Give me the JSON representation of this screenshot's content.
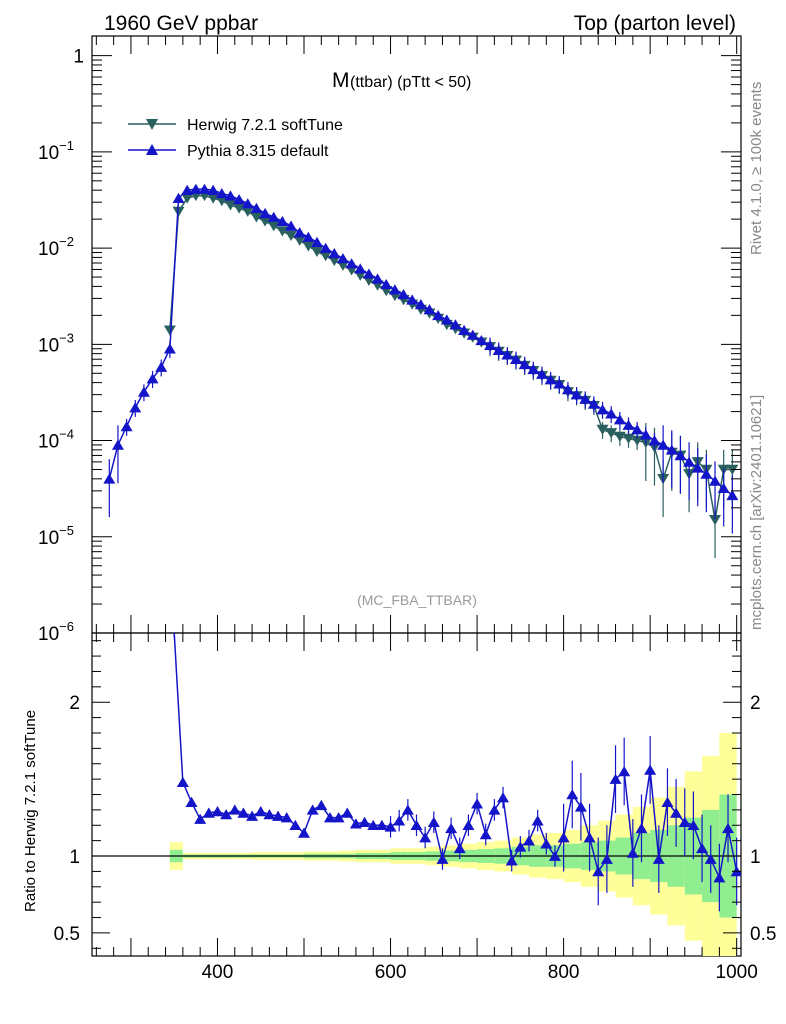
{
  "header": {
    "left": "1960 GeV ppbar",
    "right": "Top (parton level)"
  },
  "plot_title": {
    "main": "M",
    "sub": "(ttbar) (pTtt < 50)"
  },
  "side_labels": {
    "rivet": "Rivet 4.1.0, ≥ 100k events",
    "mcplots": "mcplots.cern.ch [arXiv:2401.10621]"
  },
  "watermark": "(MC_FBA_TTBAR)",
  "colors": {
    "herwig": "#2a5f5f",
    "pythia": "#1414c8",
    "band_inner": "#90ee90",
    "band_outer": "#ffff99"
  },
  "chart_data": [
    {
      "type": "line",
      "panel": "main",
      "yscale": "log",
      "xlim": [
        255,
        1005
      ],
      "ylim": [
        1e-06,
        1.6
      ],
      "x_ticks": [
        400,
        600,
        800,
        1000
      ],
      "y_tick_labels": [
        {
          "value": 1,
          "base": "1",
          "exp": ""
        },
        {
          "value": 0.1,
          "base": "10",
          "exp": "−1"
        },
        {
          "value": 0.01,
          "base": "10",
          "exp": "−2"
        },
        {
          "value": 0.001,
          "base": "10",
          "exp": "−3"
        },
        {
          "value": 0.0001,
          "base": "10",
          "exp": "−4"
        },
        {
          "value": 1e-05,
          "base": "10",
          "exp": "−5"
        },
        {
          "value": 1e-06,
          "base": "10",
          "exp": "−6"
        }
      ],
      "legend_position": "top-left",
      "series": [
        {
          "name": "Herwig 7.2.1 softTune",
          "marker": "triangle-down",
          "x": [
            345,
            355,
            365,
            375,
            385,
            395,
            405,
            415,
            425,
            435,
            445,
            455,
            465,
            475,
            485,
            495,
            505,
            515,
            525,
            535,
            545,
            555,
            565,
            575,
            585,
            595,
            605,
            615,
            625,
            635,
            645,
            655,
            665,
            675,
            685,
            695,
            705,
            715,
            725,
            735,
            745,
            755,
            765,
            775,
            785,
            795,
            805,
            815,
            825,
            835,
            845,
            855,
            865,
            875,
            885,
            895,
            905,
            915,
            925,
            935,
            945,
            955,
            965,
            975,
            985,
            995
          ],
          "values": [
            0.0014,
            0.024,
            0.033,
            0.035,
            0.035,
            0.033,
            0.031,
            0.028,
            0.026,
            0.024,
            0.021,
            0.019,
            0.017,
            0.015,
            0.0135,
            0.012,
            0.0105,
            0.0092,
            0.0083,
            0.0074,
            0.0066,
            0.0059,
            0.0052,
            0.0046,
            0.0041,
            0.0036,
            0.0032,
            0.0029,
            0.0026,
            0.0023,
            0.0021,
            0.00185,
            0.0016,
            0.00145,
            0.0013,
            0.00118,
            0.00105,
            0.00094,
            0.00084,
            0.00076,
            0.00068,
            0.0006,
            0.00053,
            0.00047,
            0.00042,
            0.00038,
            0.00032,
            0.00029,
            0.00026,
            0.00023,
            0.00013,
            0.00012,
            0.00011,
            0.000105,
            0.0001,
            9.5e-05,
            8.5e-05,
            4e-05,
            7.5e-05,
            7e-05,
            4.5e-05,
            6e-05,
            5e-05,
            1.5e-05,
            5e-05,
            5e-05
          ]
        },
        {
          "name": "Pythia 8.315 default",
          "marker": "triangle-up",
          "x": [
            275,
            285,
            295,
            305,
            315,
            325,
            335,
            345,
            355,
            365,
            375,
            385,
            395,
            405,
            415,
            425,
            435,
            445,
            455,
            465,
            475,
            485,
            495,
            505,
            515,
            525,
            535,
            545,
            555,
            565,
            575,
            585,
            595,
            605,
            615,
            625,
            635,
            645,
            655,
            665,
            675,
            685,
            695,
            705,
            715,
            725,
            735,
            745,
            755,
            765,
            775,
            785,
            795,
            805,
            815,
            825,
            835,
            845,
            855,
            865,
            875,
            885,
            895,
            905,
            915,
            925,
            935,
            945,
            955,
            965,
            975,
            985,
            995
          ],
          "values": [
            4e-05,
            9e-05,
            0.00014,
            0.00022,
            0.00032,
            0.00044,
            0.00058,
            0.0009,
            0.033,
            0.04,
            0.041,
            0.041,
            0.04,
            0.037,
            0.035,
            0.032,
            0.029,
            0.026,
            0.023,
            0.021,
            0.019,
            0.017,
            0.0145,
            0.013,
            0.0115,
            0.01,
            0.0088,
            0.0078,
            0.0069,
            0.0061,
            0.0054,
            0.0048,
            0.0042,
            0.0037,
            0.0033,
            0.0029,
            0.0026,
            0.0023,
            0.002,
            0.0018,
            0.0016,
            0.0014,
            0.00125,
            0.0011,
            0.00098,
            0.00087,
            0.00078,
            0.0007,
            0.00062,
            0.00055,
            0.00049,
            0.00043,
            0.00039,
            0.00034,
            0.0003,
            0.00027,
            0.00024,
            0.00021,
            0.00019,
            0.000165,
            0.000145,
            0.00013,
            0.000115,
            0.0001,
            9e-05,
            8e-05,
            7e-05,
            6e-05,
            5.2e-05,
            4.5e-05,
            3.8e-05,
            3.2e-05,
            2.7e-05
          ]
        }
      ]
    },
    {
      "type": "line",
      "panel": "ratio",
      "ylabel": "Ratio to Herwig 7.2.1 softTune",
      "xlim": [
        255,
        1005
      ],
      "ylim": [
        0.35,
        2.45
      ],
      "x_ticks": [
        400,
        600,
        800,
        1000
      ],
      "y_ticks": [
        0.5,
        1,
        2
      ],
      "series": [
        {
          "name": "Pythia 8.315 default",
          "x": [
            350,
            360,
            370,
            380,
            390,
            400,
            410,
            420,
            430,
            440,
            450,
            460,
            470,
            480,
            490,
            500,
            510,
            520,
            530,
            540,
            550,
            560,
            570,
            580,
            590,
            600,
            610,
            620,
            630,
            640,
            650,
            660,
            670,
            680,
            690,
            700,
            710,
            720,
            730,
            740,
            750,
            760,
            770,
            780,
            790,
            800,
            810,
            820,
            830,
            840,
            850,
            860,
            870,
            880,
            890,
            900,
            910,
            920,
            930,
            940,
            950,
            960,
            970,
            980,
            990,
            1000
          ],
          "values": [
            2.45,
            1.48,
            1.35,
            1.24,
            1.28,
            1.29,
            1.27,
            1.3,
            1.28,
            1.26,
            1.29,
            1.27,
            1.26,
            1.25,
            1.2,
            1.15,
            1.3,
            1.33,
            1.25,
            1.25,
            1.28,
            1.21,
            1.22,
            1.2,
            1.2,
            1.19,
            1.23,
            1.3,
            1.2,
            1.12,
            1.22,
            0.98,
            1.18,
            1.05,
            1.2,
            1.34,
            1.14,
            1.3,
            1.38,
            0.97,
            1.06,
            1.1,
            1.23,
            1.08,
            1.0,
            1.12,
            1.4,
            1.32,
            1.12,
            0.9,
            0.98,
            1.5,
            1.55,
            1.02,
            1.18,
            1.56,
            0.98,
            1.35,
            1.28,
            1.22,
            1.2,
            1.05,
            0.98,
            0.86,
            1.18,
            0.9
          ]
        }
      ],
      "band_x": [
        345,
        360,
        380,
        400,
        420,
        440,
        460,
        480,
        500,
        520,
        540,
        560,
        580,
        600,
        620,
        640,
        660,
        680,
        700,
        720,
        740,
        760,
        780,
        800,
        820,
        840,
        860,
        880,
        900,
        920,
        940,
        960,
        980,
        1000
      ],
      "band_inner_half": [
        0.04,
        0.01,
        0.01,
        0.01,
        0.01,
        0.01,
        0.01,
        0.01,
        0.015,
        0.015,
        0.015,
        0.02,
        0.02,
        0.025,
        0.025,
        0.03,
        0.035,
        0.04,
        0.045,
        0.05,
        0.06,
        0.07,
        0.07,
        0.08,
        0.09,
        0.1,
        0.12,
        0.15,
        0.17,
        0.2,
        0.25,
        0.3,
        0.4,
        0.5
      ],
      "band_outer_half": [
        0.09,
        0.02,
        0.02,
        0.02,
        0.02,
        0.025,
        0.025,
        0.025,
        0.03,
        0.03,
        0.035,
        0.04,
        0.04,
        0.05,
        0.05,
        0.06,
        0.07,
        0.08,
        0.09,
        0.1,
        0.12,
        0.14,
        0.15,
        0.17,
        0.2,
        0.23,
        0.27,
        0.32,
        0.38,
        0.45,
        0.55,
        0.65,
        0.8,
        1.0
      ]
    }
  ]
}
